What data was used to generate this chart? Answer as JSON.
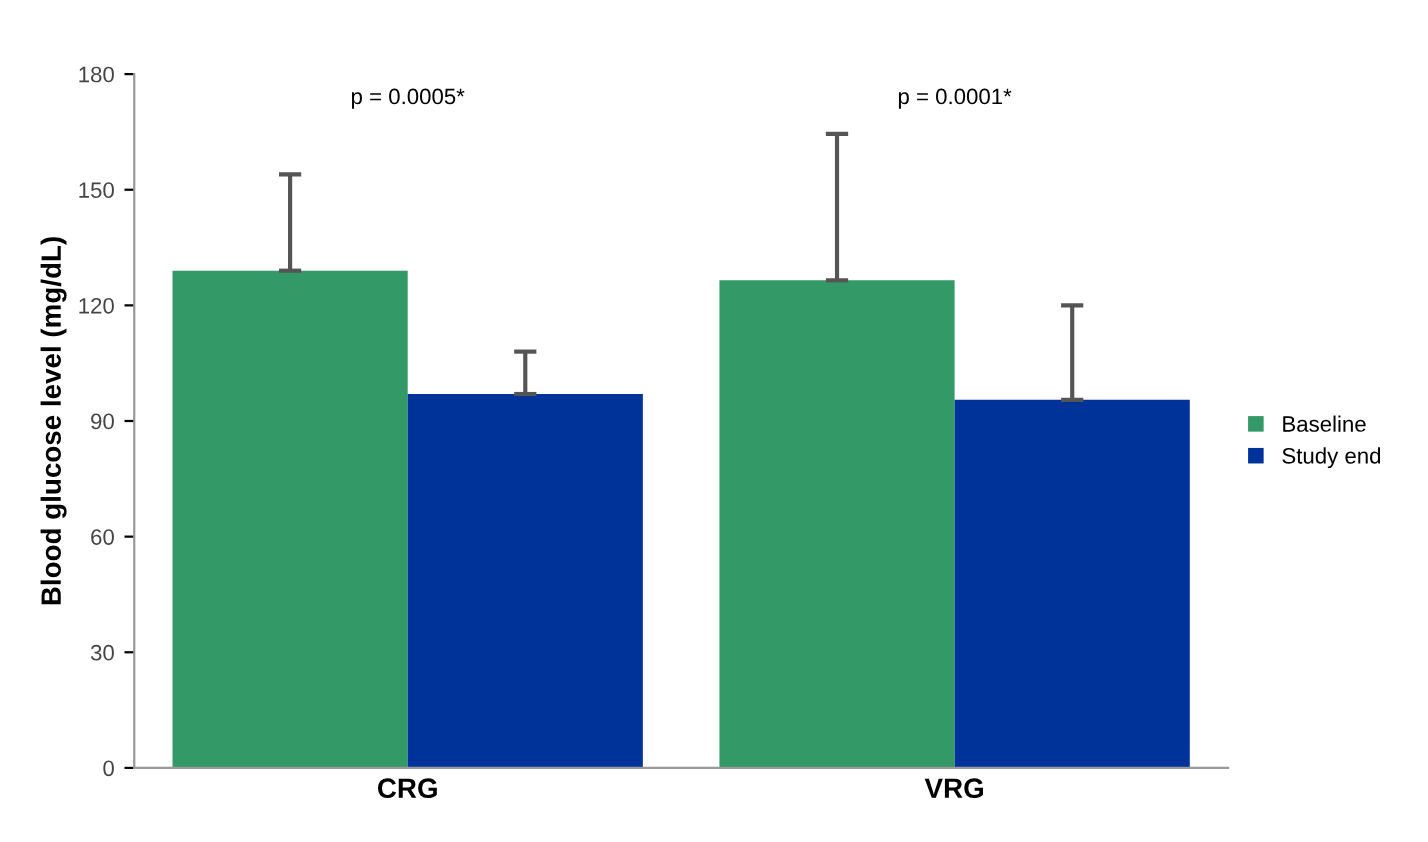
{
  "chart_data": {
    "type": "bar",
    "ylabel": "Blood glucose level (mg/dL)",
    "categories": [
      "CRG",
      "VRG"
    ],
    "series": [
      {
        "name": "Baseline",
        "color": "#339966",
        "values": [
          129,
          126.5
        ],
        "errors": [
          [
            129,
            154
          ],
          [
            126.5,
            164.5
          ]
        ]
      },
      {
        "name": "Study end",
        "color": "#003399",
        "values": [
          97,
          95.5
        ],
        "errors": [
          [
            97,
            108
          ],
          [
            95.5,
            120
          ]
        ]
      }
    ],
    "ylim": [
      0,
      180
    ],
    "yticks": [
      0,
      30,
      60,
      90,
      120,
      150,
      180
    ],
    "grid": false,
    "legend": "right",
    "annotations": [
      "p = 0.0005*",
      "p = 0.0001*"
    ]
  }
}
